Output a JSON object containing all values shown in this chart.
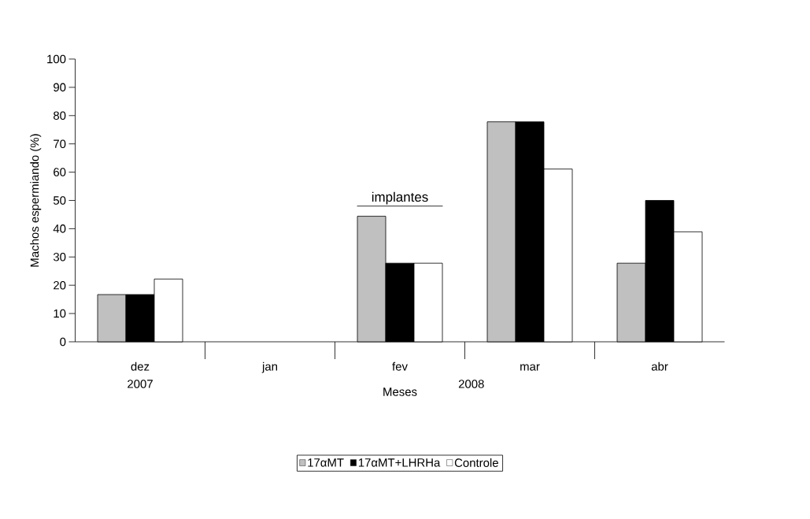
{
  "chart_data": {
    "type": "bar",
    "xlabel": "Meses",
    "ylabel": "Machos espermiando (%)",
    "categories": [
      "dez",
      "jan",
      "fev",
      "mar",
      "abr"
    ],
    "series": [
      {
        "name": "17αMT",
        "color": "#c0c0c0",
        "values": [
          16.7,
          null,
          44.4,
          77.8,
          27.8
        ]
      },
      {
        "name": "17αMT+LHRHa",
        "color": "#000000",
        "values": [
          16.7,
          null,
          27.8,
          77.8,
          50
        ]
      },
      {
        "name": "Controle",
        "color": "#ffffff",
        "values": [
          22.2,
          null,
          27.8,
          61.1,
          38.9
        ]
      }
    ],
    "ylim": [
      0,
      100
    ],
    "yticks": [
      0,
      10,
      20,
      30,
      40,
      50,
      60,
      70,
      80,
      90,
      100
    ],
    "annotations": [
      "2007",
      "2008",
      "implantes"
    ],
    "legend": "bottom",
    "grid": false
  }
}
